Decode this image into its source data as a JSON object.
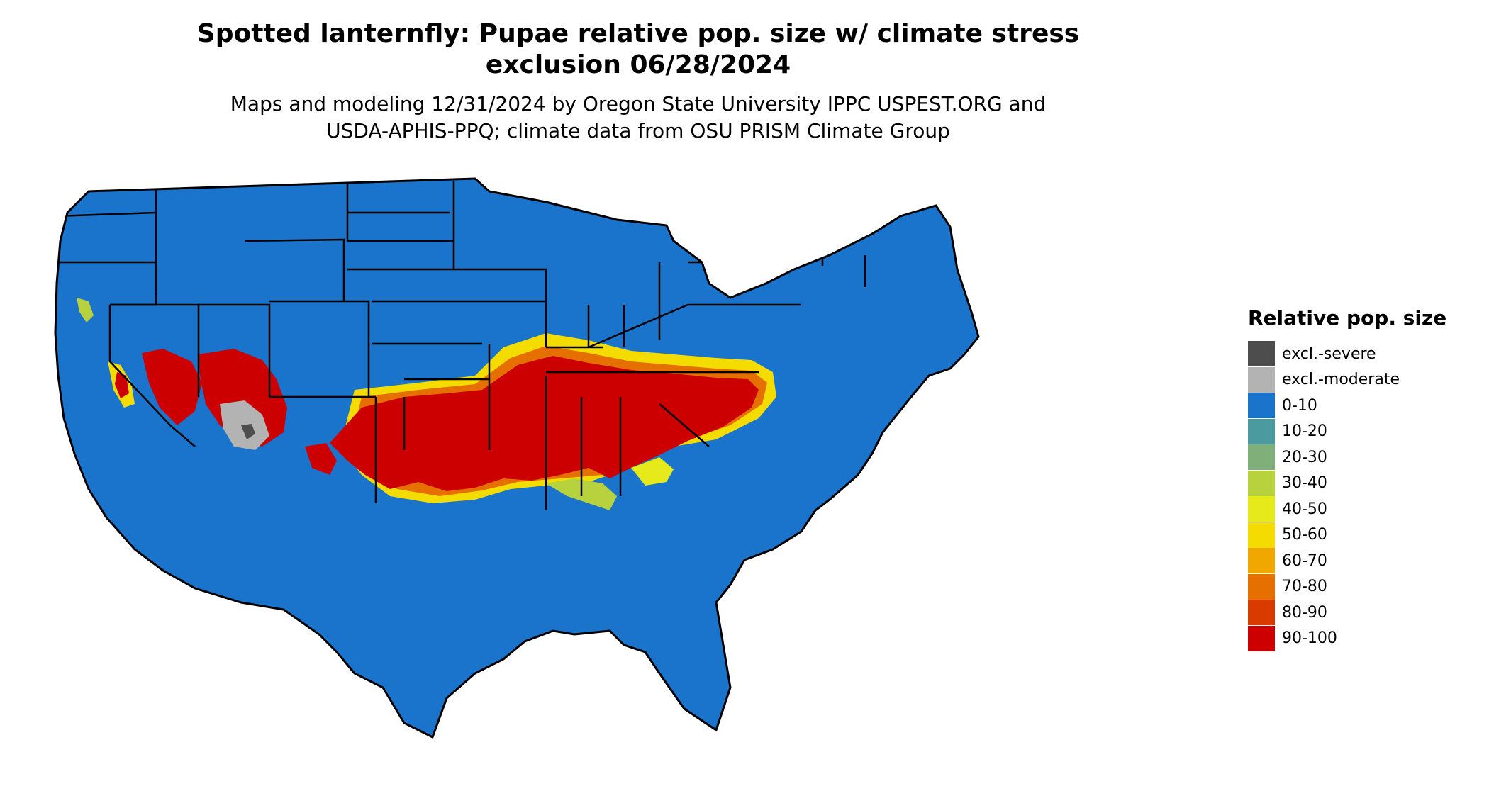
{
  "title": "Spotted lanternfly: Pupae relative pop. size w/ climate stress\nexclusion 06/28/2024",
  "subtitle": "Maps and modeling 12/31/2024 by Oregon State University IPPC USPEST.ORG and\nUSDA-APHIS-PPQ; climate data from OSU PRISM Climate Group",
  "legend": {
    "title": "Relative pop. size",
    "items": [
      {
        "label": "excl.-severe",
        "color": "#4d4d4d"
      },
      {
        "label": "excl.-moderate",
        "color": "#b3b3b3"
      },
      {
        "label": "0-10",
        "color": "#1a74cc"
      },
      {
        "label": "10-20",
        "color": "#4a9aa0"
      },
      {
        "label": "20-30",
        "color": "#7fb07a"
      },
      {
        "label": "30-40",
        "color": "#b8d23e"
      },
      {
        "label": "40-50",
        "color": "#e6ea1a"
      },
      {
        "label": "50-60",
        "color": "#f5dc00"
      },
      {
        "label": "60-70",
        "color": "#f0a800"
      },
      {
        "label": "70-80",
        "color": "#e57000"
      },
      {
        "label": "80-90",
        "color": "#d83a00"
      },
      {
        "label": "90-100",
        "color": "#cc0000"
      }
    ]
  },
  "map": {
    "region": "Contiguous United States",
    "base_color": "#1a74cc",
    "border_color": "#000000"
  }
}
